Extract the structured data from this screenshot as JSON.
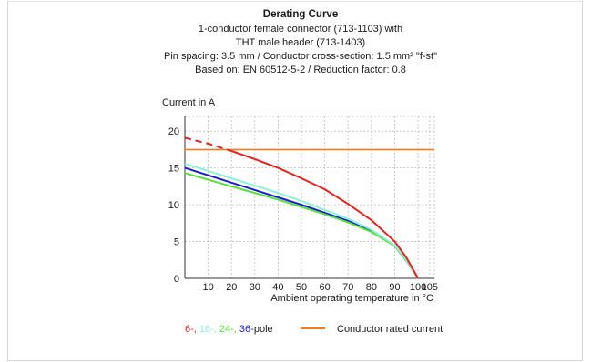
{
  "chart_data": {
    "type": "line",
    "title": "Derating Curve",
    "subtitle_lines": [
      "1-conductor female connector (713-1103) with",
      "THT male header (713-1403)",
      "Pin spacing: 3.5 mm / Conductor cross-section: 1.5 mm² \"f-st\"",
      "Based on: EN 60512-5-2 / Reduction factor: 0.8"
    ],
    "ylabel": "Current in A",
    "xlabel": "Ambient operating temperature in °C",
    "xlim": [
      0,
      107
    ],
    "ylim": [
      0,
      22
    ],
    "x_ticks": [
      10,
      20,
      30,
      40,
      50,
      60,
      70,
      80,
      90,
      100,
      105
    ],
    "y_ticks": [
      0,
      5,
      10,
      15,
      20
    ],
    "grid": true,
    "series": [
      {
        "pole": "6-",
        "color": "#e8211f",
        "dashed_until": 20,
        "points": [
          [
            0,
            19.1
          ],
          [
            10,
            18.3
          ],
          [
            20,
            17.3
          ],
          [
            30,
            16.2
          ],
          [
            40,
            15.0
          ],
          [
            50,
            13.6
          ],
          [
            60,
            12.1
          ],
          [
            70,
            10.1
          ],
          [
            80,
            7.9
          ],
          [
            90,
            5.0
          ],
          [
            95,
            2.8
          ],
          [
            100,
            0
          ]
        ]
      },
      {
        "pole": "16-",
        "color": "#8ff0dc",
        "points": [
          [
            0,
            15.6
          ],
          [
            10,
            14.6
          ],
          [
            20,
            13.6
          ],
          [
            30,
            12.6
          ],
          [
            40,
            11.6
          ],
          [
            50,
            10.5
          ],
          [
            60,
            9.3
          ],
          [
            70,
            8.1
          ],
          [
            80,
            6.6
          ],
          [
            90,
            4.5
          ],
          [
            95,
            2.5
          ],
          [
            100,
            0
          ]
        ]
      },
      {
        "pole": "24-",
        "color": "#56e136",
        "points": [
          [
            0,
            14.3
          ],
          [
            10,
            13.4
          ],
          [
            20,
            12.5
          ],
          [
            30,
            11.6
          ],
          [
            40,
            10.7
          ],
          [
            50,
            9.7
          ],
          [
            60,
            8.7
          ],
          [
            70,
            7.6
          ],
          [
            80,
            6.3
          ],
          [
            90,
            4.4
          ],
          [
            95,
            2.4
          ],
          [
            100,
            0
          ]
        ]
      },
      {
        "pole": "36-",
        "color": "#1b1bd6",
        "points": [
          [
            0,
            15.0
          ],
          [
            10,
            14.0
          ],
          [
            20,
            13.0
          ],
          [
            30,
            12.0
          ],
          [
            40,
            11.0
          ],
          [
            50,
            10.0
          ],
          [
            60,
            8.9
          ],
          [
            70,
            7.8
          ],
          [
            80,
            6.4
          ],
          [
            90,
            4.4
          ],
          [
            95,
            2.4
          ],
          [
            100,
            0
          ]
        ]
      }
    ],
    "reference_line": {
      "name": "Conductor rated current",
      "y": 17.5,
      "color": "#f07d1e"
    },
    "legend": {
      "poles": [
        {
          "text": "6-,",
          "color": "#e8211f"
        },
        {
          "text": " 16-,",
          "color": "#8ff0dc"
        },
        {
          "text": " 24-,",
          "color": "#56e136"
        },
        {
          "text": " 36-",
          "color": "#1b1bd6"
        },
        {
          "text": "pole",
          "color": "#1a1a1a"
        }
      ],
      "rated_label": "Conductor rated current",
      "rated_color": "#f07d1e"
    }
  }
}
